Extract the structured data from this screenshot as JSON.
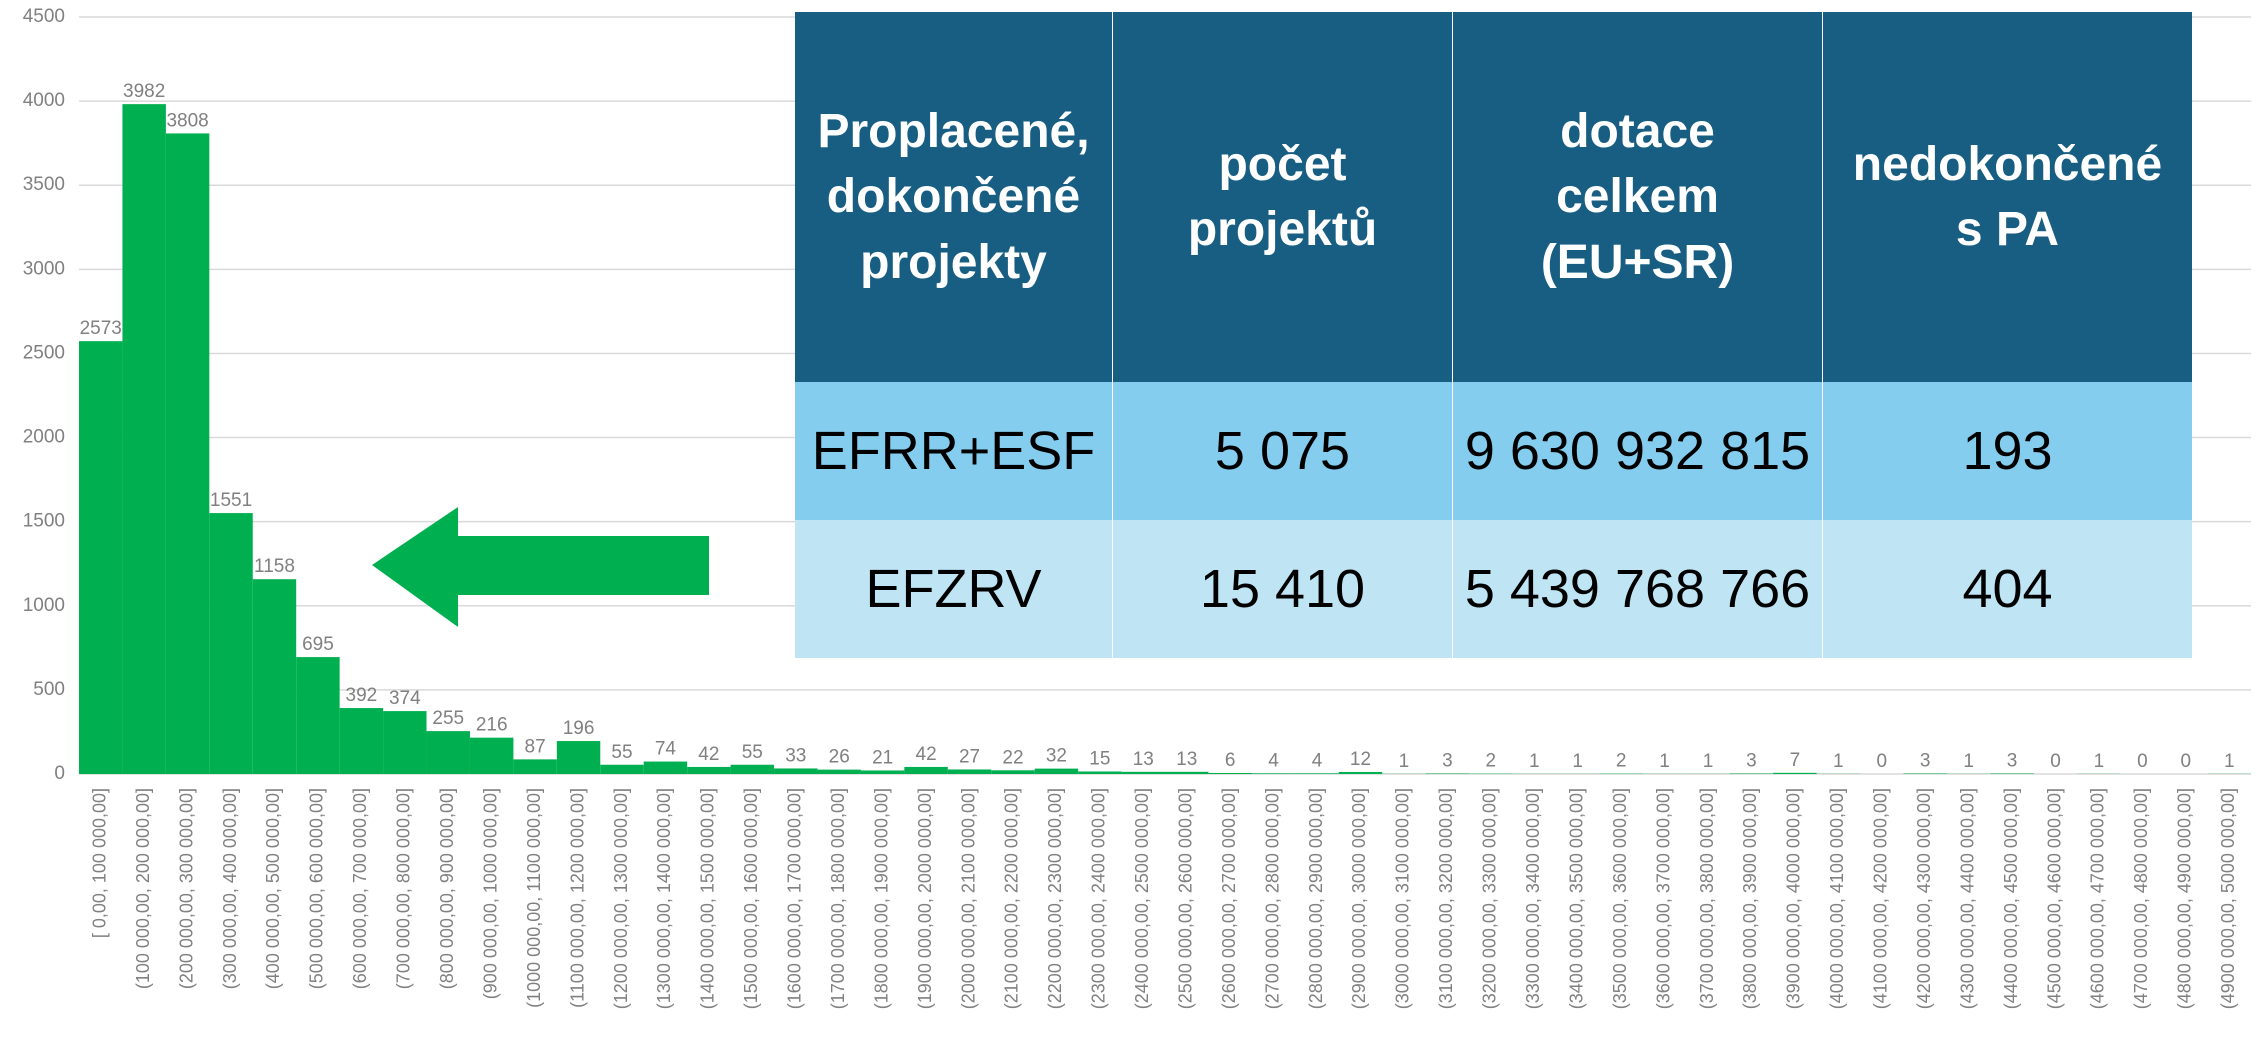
{
  "chart_data": {
    "type": "bar",
    "categories": [
      "[ 0,00, 100 000,00]",
      "(100 000,00, 200 000,00]",
      "(200 000,00, 300 000,00]",
      "(300 000,00, 400 000,00]",
      "(400 000,00, 500 000,00]",
      "(500 000,00, 600 000,00]",
      "(600 000,00, 700 000,00]",
      "(700 000,00, 800 000,00]",
      "(800 000,00, 900 000,00]",
      "(900 000,00, 1000 000,00]",
      "(1000 000,00, 1100 000,00]",
      "(1100 000,00, 1200 000,00]",
      "(1200 000,00, 1300 000,00]",
      "(1300 000,00, 1400 000,00]",
      "(1400 000,00, 1500 000,00]",
      "(1500 000,00, 1600 000,00]",
      "(1600 000,00, 1700 000,00]",
      "(1700 000,00, 1800 000,00]",
      "(1800 000,00, 1900 000,00]",
      "(1900 000,00, 2000 000,00]",
      "(2000 000,00, 2100 000,00]",
      "(2100 000,00, 2200 000,00]",
      "(2200 000,00, 2300 000,00]",
      "(2300 000,00, 2400 000,00]",
      "(2400 000,00, 2500 000,00]",
      "(2500 000,00, 2600 000,00]",
      "(2600 000,00, 2700 000,00]",
      "(2700 000,00, 2800 000,00]",
      "(2800 000,00, 2900 000,00]",
      "(2900 000,00, 3000 000,00]",
      "(3000 000,00, 3100 000,00]",
      "(3100 000,00, 3200 000,00]",
      "(3200 000,00, 3300 000,00]",
      "(3300 000,00, 3400 000,00]",
      "(3400 000,00, 3500 000,00]",
      "(3500 000,00, 3600 000,00]",
      "(3600 000,00, 3700 000,00]",
      "(3700 000,00, 3800 000,00]",
      "(3800 000,00, 3900 000,00]",
      "(3900 000,00, 4000 000,00]",
      "(4000 000,00, 4100 000,00]",
      "(4100 000,00, 4200 000,00]",
      "(4200 000,00, 4300 000,00]",
      "(4300 000,00, 4400 000,00]",
      "(4400 000,00, 4500 000,00]",
      "(4500 000,00, 4600 000,00]",
      "(4600 000,00, 4700 000,00]",
      "(4700 000,00, 4800 000,00]",
      "(4800 000,00, 4900 000,00]",
      "(4900 000,00, 5000 000,00]"
    ],
    "values": [
      2573,
      3982,
      3808,
      1551,
      1158,
      695,
      392,
      374,
      255,
      216,
      87,
      196,
      55,
      74,
      42,
      55,
      33,
      26,
      21,
      42,
      27,
      22,
      32,
      15,
      13,
      13,
      6,
      4,
      4,
      12,
      1,
      3,
      2,
      1,
      1,
      2,
      1,
      1,
      3,
      7,
      1,
      0,
      3,
      1,
      3,
      0,
      1,
      0,
      0,
      1
    ],
    "color": "#00b050",
    "ylim": [
      0,
      4500
    ],
    "yticks": [
      0,
      500,
      1000,
      1500,
      2000,
      2500,
      3000,
      3500,
      4000,
      4500
    ],
    "grid": true
  },
  "table": {
    "header": [
      "Proplacené,\ndokončené\nprojekty",
      "počet\nprojektů",
      "dotace\ncelkem\n(EU+SR)",
      "nedokončené\ns PA"
    ],
    "rows": [
      [
        "EFRR+ESF",
        "5 075",
        "9 630 932 815",
        "193"
      ],
      [
        "EFZRV",
        "15 410",
        "5 439 768 766",
        "404"
      ]
    ]
  }
}
